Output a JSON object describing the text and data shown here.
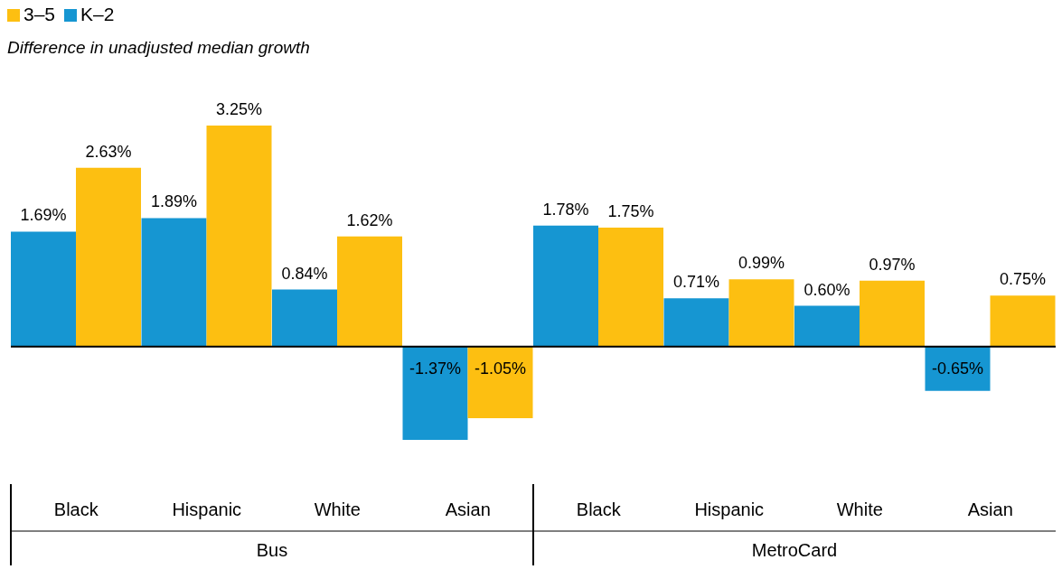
{
  "chart_data": {
    "type": "bar",
    "ylabel": "Difference in unadjusted median growth",
    "categories": [
      "Black",
      "Hispanic",
      "White",
      "Asian",
      "Black",
      "Hispanic",
      "White",
      "Asian"
    ],
    "annotations": [
      "Bus",
      "MetroCard"
    ],
    "series": [
      {
        "name": "K–2",
        "color": "#1696d2",
        "values": [
          1.69,
          1.89,
          0.84,
          -1.37,
          1.78,
          0.71,
          0.6,
          -0.65
        ],
        "value_labels": [
          "1.69%",
          "1.89%",
          "0.84%",
          "-1.37%",
          "1.78%",
          "0.71%",
          "0.60%",
          "-0.65%"
        ]
      },
      {
        "name": "3–5",
        "color": "#fdbf11",
        "values": [
          2.63,
          3.25,
          1.62,
          -1.05,
          1.75,
          0.99,
          0.97,
          0.75
        ],
        "value_labels": [
          "2.63%",
          "3.25%",
          "1.62%",
          "-1.05%",
          "1.75%",
          "0.99%",
          "0.97%",
          "0.75%"
        ]
      }
    ],
    "legend": "top left",
    "grid": false
  }
}
